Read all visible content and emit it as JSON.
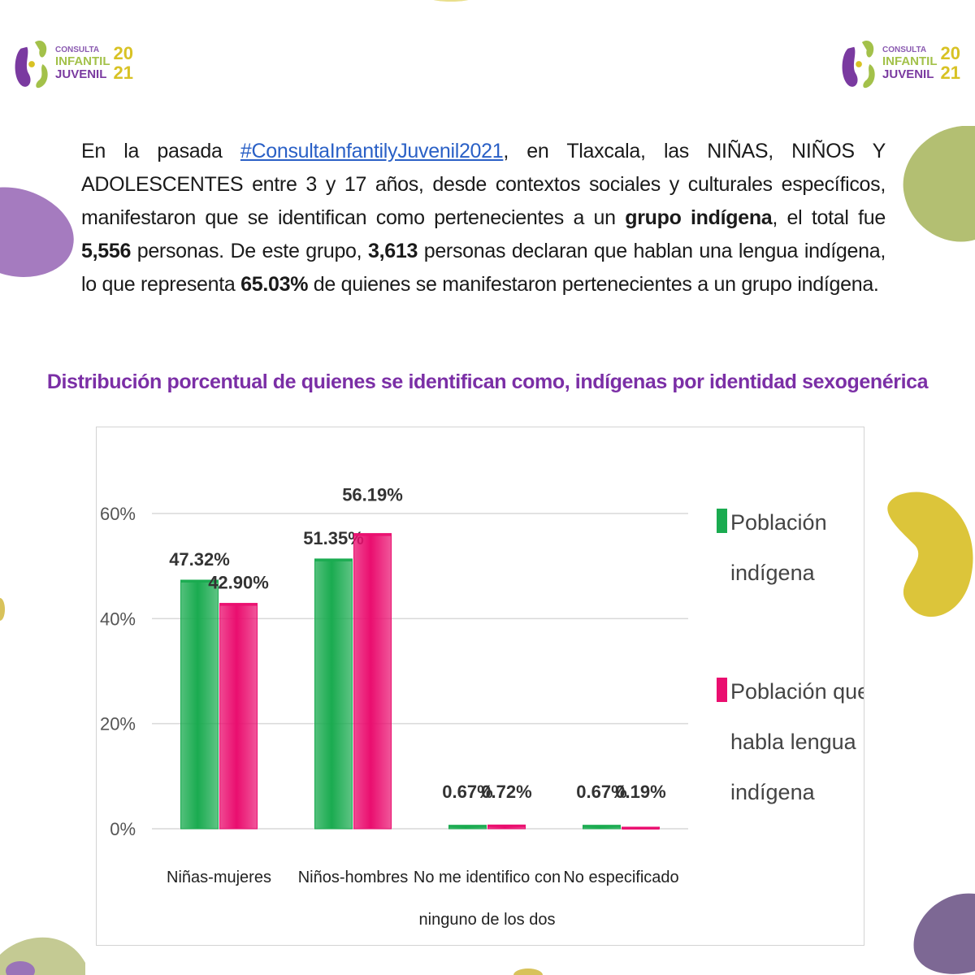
{
  "logo": {
    "line1": "CONSULTA",
    "line2": "INFANTIL",
    "line3": "JUVENIL",
    "year_top": "20",
    "year_bottom": "21"
  },
  "intro": {
    "p1": "En la pasada ",
    "hashtag": "#ConsultaInfantilyJuvenil2021",
    "p2": ", en Tlaxcala, las NIÑAS, NIÑOS Y ADOLESCENTES entre 3 y 17 años, desde contextos sociales y culturales específicos, manifestaron que se identifican como pertenecientes a un ",
    "b1": "grupo indígena",
    "p3": ", el total fue ",
    "b2": "5,556",
    "p4": " personas. De este grupo, ",
    "b3": "3,613",
    "p5": " personas declaran que hablan una lengua indígena, lo que representa ",
    "b4": "65.03%",
    "p6": " de quienes se manifestaron pertenecientes a un grupo indígena."
  },
  "chart_data": {
    "type": "bar",
    "title": "Distribución porcentual de quienes se identifican como, indígenas por identidad sexogenérica",
    "categories": [
      [
        "Niñas-mujeres"
      ],
      [
        "Niños-hombres"
      ],
      [
        "No me identifico con",
        "ninguno de los dos"
      ],
      [
        "No especificado"
      ]
    ],
    "series": [
      {
        "name_lines": [
          "Población",
          "indígena"
        ],
        "color": "#1aab50",
        "values": [
          47.32,
          51.35,
          0.67,
          0.67
        ],
        "labels": [
          "47.32%",
          "51.35%",
          "0.67%",
          "0.67%"
        ]
      },
      {
        "name_lines": [
          "Población que",
          "habla lengua",
          "indígena"
        ],
        "color": "#ea0e6f",
        "values": [
          42.9,
          56.19,
          0.72,
          0.19
        ],
        "labels": [
          "42.90%",
          "56.19%",
          "0.72%",
          "0.19%"
        ]
      }
    ],
    "y_ticks": [
      "0%",
      "20%",
      "40%",
      "60%"
    ],
    "ylim": [
      0,
      60
    ],
    "grid": true,
    "legend_position": "right"
  }
}
